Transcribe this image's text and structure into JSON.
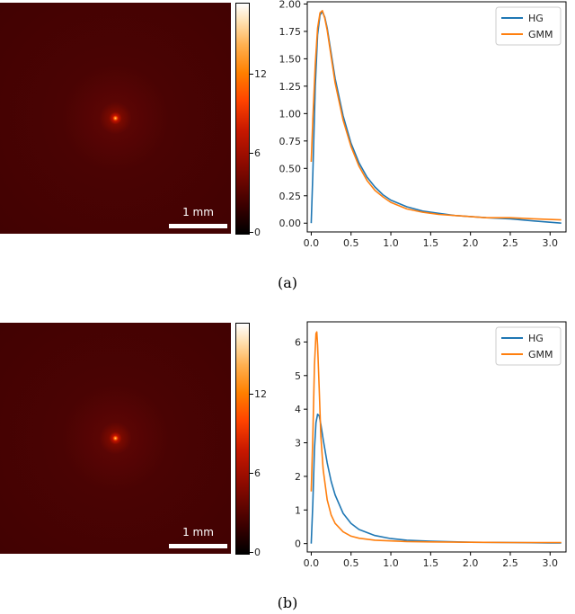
{
  "panels": [
    {
      "id": "a",
      "caption": "(a)",
      "scalebar_label": "1 mm",
      "colorbar_ticks": [
        "0",
        "6",
        "12"
      ],
      "colorbar_range": [
        0,
        16
      ],
      "chart_data": {
        "type": "line",
        "xlim": [
          -0.05,
          3.2
        ],
        "ylim": [
          -0.08,
          2.02
        ],
        "xticks": [
          "0.0",
          "0.5",
          "1.0",
          "1.5",
          "2.0",
          "2.5",
          "3.0"
        ],
        "yticks": [
          "0.00",
          "0.25",
          "0.50",
          "0.75",
          "1.00",
          "1.25",
          "1.50",
          "1.75",
          "2.00"
        ],
        "legend_position": "top-right",
        "series": [
          {
            "name": "HG",
            "color": "#1f77b4",
            "x": [
              0.0,
              0.02,
              0.05,
              0.08,
              0.11,
              0.14,
              0.17,
              0.2,
              0.25,
              0.3,
              0.4,
              0.5,
              0.6,
              0.7,
              0.8,
              0.9,
              1.0,
              1.2,
              1.4,
              1.6,
              1.8,
              2.0,
              2.2,
              2.5,
              2.8,
              3.14
            ],
            "y": [
              0.0,
              0.45,
              1.25,
              1.72,
              1.9,
              1.93,
              1.88,
              1.78,
              1.55,
              1.32,
              0.98,
              0.73,
              0.55,
              0.42,
              0.33,
              0.26,
              0.21,
              0.15,
              0.11,
              0.09,
              0.07,
              0.06,
              0.05,
              0.04,
              0.02,
              0.0
            ]
          },
          {
            "name": "GMM",
            "color": "#ff7f0e",
            "x": [
              0.0,
              0.02,
              0.05,
              0.08,
              0.11,
              0.14,
              0.17,
              0.2,
              0.25,
              0.3,
              0.4,
              0.5,
              0.6,
              0.7,
              0.8,
              0.9,
              1.0,
              1.2,
              1.4,
              1.6,
              1.8,
              2.0,
              2.2,
              2.5,
              2.8,
              3.14
            ],
            "y": [
              0.56,
              0.95,
              1.45,
              1.78,
              1.92,
              1.94,
              1.87,
              1.76,
              1.52,
              1.28,
              0.94,
              0.7,
              0.52,
              0.39,
              0.3,
              0.24,
              0.19,
              0.13,
              0.1,
              0.08,
              0.07,
              0.06,
              0.05,
              0.05,
              0.04,
              0.03
            ]
          }
        ]
      }
    },
    {
      "id": "b",
      "caption": "(b)",
      "scalebar_label": "1 mm",
      "colorbar_ticks": [
        "0",
        "6",
        "12"
      ],
      "colorbar_range": [
        0,
        16
      ],
      "chart_data": {
        "type": "line",
        "xlim": [
          -0.05,
          3.2
        ],
        "ylim": [
          -0.25,
          6.6
        ],
        "xticks": [
          "0.0",
          "0.5",
          "1.0",
          "1.5",
          "2.0",
          "2.5",
          "3.0"
        ],
        "yticks": [
          "0",
          "1",
          "2",
          "3",
          "4",
          "5",
          "6"
        ],
        "legend_position": "top-right",
        "series": [
          {
            "name": "HG",
            "color": "#1f77b4",
            "x": [
              0.0,
              0.02,
              0.04,
              0.06,
              0.08,
              0.1,
              0.12,
              0.15,
              0.2,
              0.25,
              0.3,
              0.4,
              0.5,
              0.6,
              0.8,
              1.0,
              1.2,
              1.5,
              2.0,
              2.5,
              3.0,
              3.14
            ],
            "y": [
              0.0,
              1.2,
              2.8,
              3.6,
              3.85,
              3.8,
              3.55,
              3.1,
              2.4,
              1.85,
              1.45,
              0.9,
              0.6,
              0.42,
              0.24,
              0.15,
              0.1,
              0.07,
              0.04,
              0.03,
              0.02,
              0.02
            ]
          },
          {
            "name": "GMM",
            "color": "#ff7f0e",
            "x": [
              0.0,
              0.02,
              0.04,
              0.06,
              0.07,
              0.08,
              0.1,
              0.12,
              0.15,
              0.2,
              0.25,
              0.3,
              0.4,
              0.5,
              0.6,
              0.8,
              1.0,
              1.2,
              1.5,
              2.0,
              2.5,
              3.0,
              3.14
            ],
            "y": [
              1.55,
              3.2,
              5.3,
              6.25,
              6.3,
              5.9,
              4.6,
              3.2,
              2.2,
              1.3,
              0.85,
              0.6,
              0.35,
              0.22,
              0.16,
              0.1,
              0.08,
              0.06,
              0.05,
              0.04,
              0.03,
              0.03,
              0.03
            ]
          }
        ]
      }
    }
  ]
}
